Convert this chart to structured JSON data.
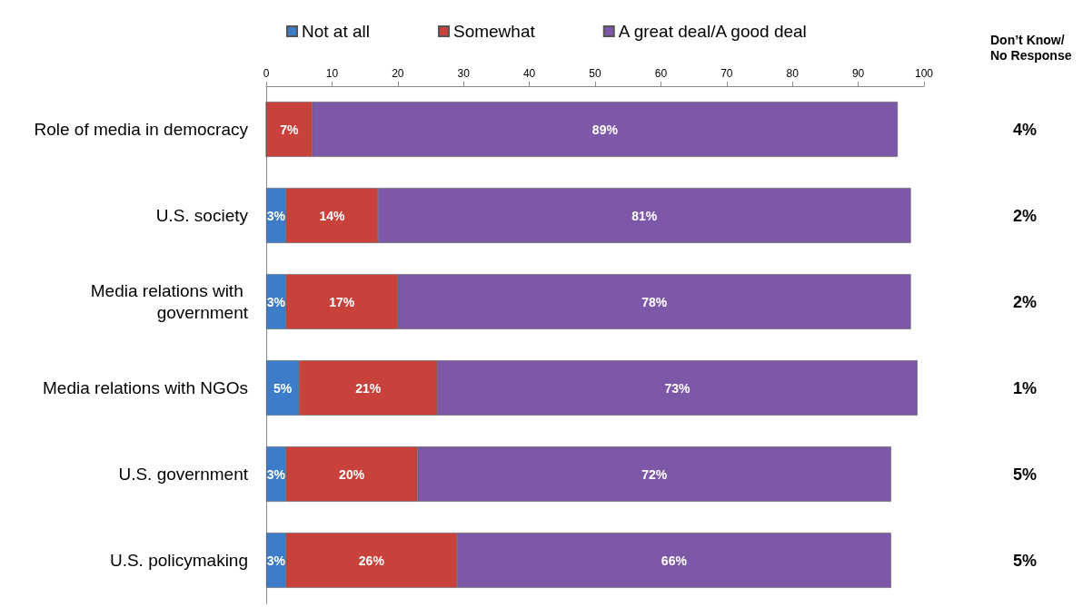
{
  "chart_data": {
    "type": "bar",
    "orientation": "horizontal",
    "stacked": true,
    "categories": [
      "Role of media in democracy",
      "U.S. society",
      "Media relations with government",
      "Media relations with NGOs",
      "U.S. government",
      "U.S. policymaking"
    ],
    "series": [
      {
        "name": "Not at all",
        "color": "#3d7cc9",
        "values": [
          0,
          3,
          3,
          5,
          3,
          3
        ],
        "value_labels": [
          null,
          "3%",
          "3%",
          "5%",
          "3%",
          "3%"
        ]
      },
      {
        "name": "Somewhat",
        "color": "#c8413b",
        "values": [
          7,
          14,
          17,
          21,
          20,
          26
        ],
        "value_labels": [
          "7%",
          "14%",
          "17%",
          "21%",
          "20%",
          "26%"
        ]
      },
      {
        "name": "A great deal/A good deal",
        "color": "#7d58a8",
        "values": [
          89,
          81,
          78,
          73,
          72,
          66
        ],
        "value_labels": [
          "89%",
          "81%",
          "78%",
          "73%",
          "72%",
          "66%"
        ]
      }
    ],
    "xlim": [
      0,
      100
    ],
    "xticks": [
      0,
      10,
      20,
      30,
      40,
      50,
      60,
      70,
      80,
      90,
      100
    ],
    "legend": "top",
    "grid": false,
    "annotations": [
      "Don’t Know/ No Response",
      "4%",
      "2%",
      "2%",
      "1%",
      "5%",
      "5%"
    ]
  }
}
